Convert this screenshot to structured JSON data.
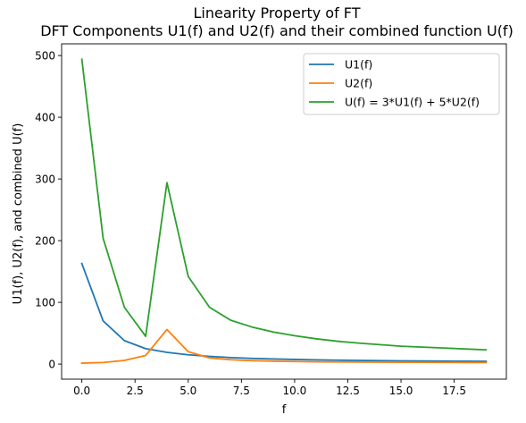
{
  "chart_data": {
    "type": "line",
    "title": "Linearity Property of FT",
    "subtitle": "DFT Components U1(f) and U2(f) and their combined function U(f)",
    "xlabel": "f",
    "ylabel": "U1(f), U2(f), and combined U(f)",
    "xlim": [
      -0.95,
      19.95
    ],
    "ylim": [
      -24.5,
      519
    ],
    "xticks": [
      0,
      2.5,
      5,
      7.5,
      10,
      12.5,
      15,
      17.5
    ],
    "xtick_labels": [
      "0.0",
      "2.5",
      "5.0",
      "7.5",
      "10.0",
      "12.5",
      "15.0",
      "17.5"
    ],
    "yticks": [
      0,
      100,
      200,
      300,
      400,
      500
    ],
    "ytick_labels": [
      "0",
      "100",
      "200",
      "300",
      "400",
      "500"
    ],
    "grid": false,
    "legend_position": "top-right",
    "x": [
      0,
      1,
      2,
      3,
      4,
      5,
      6,
      7,
      8,
      9,
      10,
      11,
      12,
      13,
      14,
      15,
      16,
      17,
      18,
      19
    ],
    "series": [
      {
        "name": "U1(f)",
        "color": "#1f77b4",
        "values": [
          163,
          70,
          38,
          25,
          19,
          15,
          12.5,
          10.5,
          9.2,
          8.2,
          7.5,
          6.8,
          6.3,
          5.9,
          5.5,
          5.2,
          5.0,
          4.8,
          4.6,
          4.4
        ]
      },
      {
        "name": "U2(f)",
        "color": "#ff7f0e",
        "values": [
          1.5,
          2.5,
          6,
          14,
          56,
          20,
          10,
          7,
          5.5,
          4.7,
          4.1,
          3.7,
          3.4,
          3.2,
          3.0,
          2.9,
          2.8,
          2.7,
          2.6,
          2.5
        ]
      },
      {
        "name": "U(f) = 3*U1(f) + 5*U2(f)",
        "color": "#2ca02c",
        "values": [
          494,
          204,
          92,
          45,
          294,
          142,
          92,
          71,
          60,
          52,
          46,
          41,
          37,
          34,
          31.5,
          29,
          27.5,
          26,
          24.5,
          23
        ]
      }
    ]
  }
}
